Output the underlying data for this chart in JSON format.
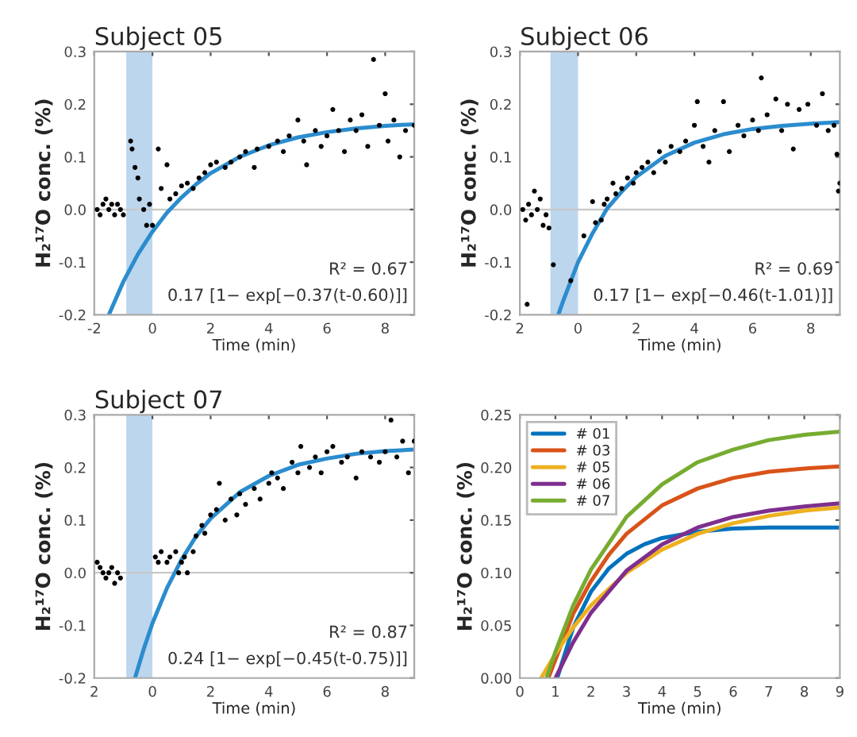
{
  "chart_data": [
    {
      "type": "scatter",
      "title": "Subject 05",
      "xlabel": "Time (min)",
      "ylabel": "H₂¹⁷O conc. (%)",
      "xlim": [
        -2,
        9
      ],
      "xticks": [
        -2,
        0,
        2,
        4,
        6,
        8
      ],
      "ylim": [
        -0.2,
        0.3
      ],
      "yticks": [
        {
          "value": -0.2,
          "label": "-0.2"
        },
        {
          "value": -0.1,
          "label": "-0.1"
        },
        {
          "value": 0,
          "label": "0.0"
        },
        {
          "value": 0.1,
          "label": "0.1"
        },
        {
          "value": 0.2,
          "label": "0.2"
        },
        {
          "value": 0.3,
          "label": "0.3"
        }
      ],
      "bands": [
        {
          "axis": "x",
          "from": -0.9,
          "to": 0,
          "color": "#bcd6ee"
        }
      ],
      "ref_lines": [
        {
          "axis": "y",
          "value": 0,
          "color": "#c8c8c8"
        }
      ],
      "annotations": [
        "R² = 0.67",
        "0.17 [1− exp[−0.37(t-0.60)]]"
      ],
      "series": [
        {
          "type": "scatter",
          "color": "#000000",
          "marker": "circle",
          "x": [
            -1.9,
            -1.8,
            -1.7,
            -1.6,
            -1.5,
            -1.4,
            -1.3,
            -1.2,
            -1.1,
            -1.0,
            -0.75,
            -0.7,
            -0.6,
            -0.5,
            -0.45,
            -0.3,
            -0.2,
            -0.1,
            0.0,
            0.2,
            0.3,
            0.5,
            0.6,
            0.8,
            1.0,
            1.2,
            1.4,
            1.6,
            1.8,
            2.0,
            2.2,
            2.5,
            2.7,
            3.0,
            3.2,
            3.5,
            3.6,
            4.0,
            4.3,
            4.5,
            4.7,
            5.0,
            5.2,
            5.3,
            5.6,
            5.8,
            6.0,
            6.2,
            6.4,
            6.6,
            6.8,
            7.0,
            7.2,
            7.4,
            7.6,
            7.8,
            8.0,
            8.1,
            8.3,
            8.5,
            8.7,
            9.0
          ],
          "values": [
            0.0,
            -0.01,
            0.01,
            0.02,
            0.0,
            0.01,
            -0.01,
            0.01,
            0.0,
            -0.01,
            0.13,
            0.115,
            0.08,
            0.06,
            0.02,
            0.0,
            -0.03,
            0.01,
            -0.03,
            0.115,
            0.04,
            0.085,
            0.02,
            0.03,
            0.045,
            0.05,
            0.04,
            0.06,
            0.07,
            0.085,
            0.09,
            0.08,
            0.09,
            0.1,
            0.11,
            0.08,
            0.115,
            0.12,
            0.13,
            0.11,
            0.14,
            0.17,
            0.13,
            0.085,
            0.15,
            0.12,
            0.14,
            0.19,
            0.15,
            0.11,
            0.17,
            0.15,
            0.18,
            0.12,
            0.285,
            0.16,
            0.22,
            0.13,
            0.17,
            0.1,
            0.15,
            0.16
          ]
        },
        {
          "type": "line",
          "color": "#2b8cce",
          "marker": "none",
          "x": [
            -1.5,
            -1,
            -0.5,
            0,
            0.5,
            1,
            1.5,
            2,
            3,
            4,
            5,
            6,
            7,
            8,
            9
          ],
          "values": [
            -0.2,
            -0.137,
            -0.085,
            -0.042,
            -0.006,
            0.023,
            0.048,
            0.069,
            0.1,
            0.122,
            0.137,
            0.147,
            0.154,
            0.159,
            0.162
          ]
        }
      ]
    },
    {
      "type": "scatter",
      "title": "Subject 06",
      "xlabel": "Time (min)",
      "ylabel": "H₂¹⁷O conc. (%)",
      "xlim": [
        -2,
        9
      ],
      "xticks": [
        {
          "value": -2,
          "label": "2"
        },
        0,
        2,
        4,
        6,
        8
      ],
      "ylim": [
        -0.2,
        0.3
      ],
      "yticks": [
        {
          "value": -0.2,
          "label": "-0.2"
        },
        {
          "value": -0.1,
          "label": "-0.1"
        },
        {
          "value": 0,
          "label": "0.0"
        },
        {
          "value": 0.1,
          "label": "0.1"
        },
        {
          "value": 0.2,
          "label": "0.2"
        },
        {
          "value": 0.3,
          "label": "0.3"
        }
      ],
      "bands": [
        {
          "axis": "x",
          "from": -0.95,
          "to": 0,
          "color": "#bcd6ee"
        }
      ],
      "ref_lines": [
        {
          "axis": "y",
          "value": 0,
          "color": "#c8c8c8"
        }
      ],
      "annotations": [
        "R² = 0.69",
        "0.17 [1− exp[−0.46(t-1.01)]]"
      ],
      "series": [
        {
          "type": "scatter",
          "color": "#000000",
          "marker": "circle",
          "x": [
            -1.9,
            -1.8,
            -1.75,
            -1.7,
            -1.6,
            -1.5,
            -1.4,
            -1.3,
            -1.2,
            -1.1,
            -1.0,
            -0.85,
            -0.25,
            0.2,
            0.5,
            0.6,
            0.8,
            0.9,
            1.0,
            1.2,
            1.3,
            1.5,
            1.7,
            1.9,
            2.0,
            2.2,
            2.4,
            2.6,
            2.8,
            3.0,
            3.2,
            3.5,
            3.7,
            4.0,
            4.1,
            4.3,
            4.5,
            4.7,
            5.0,
            5.2,
            5.5,
            5.7,
            6.0,
            6.2,
            6.3,
            6.5,
            6.8,
            7.0,
            7.2,
            7.4,
            7.6,
            7.9,
            8.2,
            8.4,
            8.6,
            8.8,
            8.9,
            9.0,
            8.95
          ],
          "values": [
            0.0,
            -0.02,
            -0.18,
            0.01,
            -0.01,
            0.035,
            0.0,
            0.02,
            -0.03,
            -0.01,
            -0.035,
            -0.105,
            -0.135,
            -0.05,
            0.015,
            -0.025,
            -0.02,
            0.01,
            0.02,
            0.05,
            0.03,
            0.04,
            0.06,
            0.05,
            0.07,
            0.08,
            0.09,
            0.07,
            0.11,
            0.09,
            0.12,
            0.11,
            0.13,
            0.16,
            0.205,
            0.12,
            0.09,
            0.15,
            0.205,
            0.11,
            0.16,
            0.14,
            0.17,
            0.15,
            0.25,
            0.18,
            0.21,
            0.15,
            0.2,
            0.115,
            0.19,
            0.2,
            0.16,
            0.22,
            0.15,
            0.16,
            0.105,
            0.05,
            0.035
          ]
        },
        {
          "type": "line",
          "color": "#2b8cce",
          "marker": "none",
          "x": [
            -0.68,
            -0.5,
            0,
            0.5,
            1,
            1.5,
            2,
            3,
            4,
            5,
            6,
            7,
            8,
            9
          ],
          "values": [
            -0.2,
            -0.172,
            -0.1,
            -0.045,
            0.002,
            0.034,
            0.062,
            0.102,
            0.127,
            0.143,
            0.153,
            0.159,
            0.163,
            0.166
          ]
        }
      ]
    },
    {
      "type": "scatter",
      "title": "Subject 07",
      "xlabel": "Time (min)",
      "ylabel": "H₂¹⁷O conc. (%)",
      "xlim": [
        -2,
        9
      ],
      "xticks": [
        {
          "value": -2,
          "label": "2"
        },
        0,
        2,
        4,
        6,
        8
      ],
      "ylim": [
        -0.2,
        0.3
      ],
      "yticks": [
        {
          "value": -0.2,
          "label": "-0.2"
        },
        {
          "value": -0.1,
          "label": "-0.1"
        },
        {
          "value": 0,
          "label": "0.0"
        },
        {
          "value": 0.1,
          "label": "0.1"
        },
        {
          "value": 0.2,
          "label": "0.2"
        },
        {
          "value": 0.3,
          "label": "0.3"
        }
      ],
      "bands": [
        {
          "axis": "x",
          "from": -0.9,
          "to": 0,
          "color": "#bcd6ee"
        }
      ],
      "ref_lines": [
        {
          "axis": "y",
          "value": 0,
          "color": "#c8c8c8"
        }
      ],
      "annotations": [
        "R² = 0.87",
        "0.24 [1− exp[−0.45(t-0.75)]]"
      ],
      "series": [
        {
          "type": "scatter",
          "color": "#000000",
          "marker": "circle",
          "x": [
            -1.9,
            -1.8,
            -1.7,
            -1.6,
            -1.5,
            -1.4,
            -1.3,
            -1.2,
            -1.1,
            0.1,
            0.2,
            0.3,
            0.5,
            0.6,
            0.8,
            0.9,
            1.0,
            1.1,
            1.2,
            1.4,
            1.5,
            1.7,
            1.8,
            2.0,
            2.2,
            2.3,
            2.5,
            2.7,
            2.9,
            3.0,
            3.2,
            3.5,
            3.7,
            4.0,
            4.1,
            4.3,
            4.5,
            4.8,
            5.0,
            5.1,
            5.4,
            5.6,
            5.8,
            6.0,
            6.2,
            6.5,
            6.7,
            7.0,
            7.2,
            7.5,
            7.8,
            8.0,
            8.2,
            8.4,
            8.6,
            8.8,
            9.0
          ],
          "values": [
            0.02,
            0.01,
            0.0,
            -0.01,
            0.0,
            0.01,
            -0.02,
            0.0,
            -0.01,
            0.03,
            0.02,
            0.04,
            0.02,
            0.03,
            0.04,
            0.0,
            0.02,
            0.03,
            0.0,
            0.04,
            0.07,
            0.09,
            0.075,
            0.11,
            0.12,
            0.17,
            0.1,
            0.14,
            0.11,
            0.15,
            0.13,
            0.16,
            0.14,
            0.17,
            0.19,
            0.18,
            0.16,
            0.21,
            0.19,
            0.24,
            0.2,
            0.22,
            0.19,
            0.23,
            0.24,
            0.21,
            0.22,
            0.18,
            0.23,
            0.22,
            0.21,
            0.23,
            0.29,
            0.22,
            0.25,
            0.19,
            0.25
          ]
        },
        {
          "type": "line",
          "color": "#2b8cce",
          "marker": "none",
          "x": [
            -0.6,
            -0.3,
            0,
            0.5,
            1,
            1.5,
            2,
            3,
            4,
            5,
            6,
            7,
            8,
            9
          ],
          "values": [
            -0.2,
            -0.145,
            -0.096,
            -0.029,
            0.025,
            0.069,
            0.103,
            0.153,
            0.184,
            0.205,
            0.217,
            0.226,
            0.231,
            0.234
          ]
        }
      ]
    },
    {
      "type": "line",
      "xlabel": "Time (min)",
      "ylabel": "H₂¹⁷O conc. (%)",
      "xlim": [
        0,
        9
      ],
      "xticks": [
        0,
        1,
        2,
        3,
        4,
        5,
        6,
        7,
        8,
        9
      ],
      "ylim": [
        0,
        0.25
      ],
      "yticks": [
        {
          "value": 0,
          "label": "0.00"
        },
        {
          "value": 0.05,
          "label": "0.05"
        },
        {
          "value": 0.1,
          "label": "0.10"
        },
        {
          "value": 0.15,
          "label": "0.15"
        },
        {
          "value": 0.2,
          "label": "0.20"
        },
        {
          "value": 0.25,
          "label": "0.25"
        }
      ],
      "legend": "top left",
      "series": [
        {
          "name": "# 01",
          "color": "#0072bd",
          "x": [
            1.05,
            1.5,
            2,
            2.5,
            3,
            3.5,
            4,
            5,
            6,
            7,
            8,
            9
          ],
          "values": [
            0,
            0.048,
            0.082,
            0.104,
            0.118,
            0.127,
            0.133,
            0.139,
            0.142,
            0.143,
            0.143,
            0.143
          ]
        },
        {
          "name": "# 03",
          "color": "#d95319",
          "x": [
            0.8,
            1.5,
            2,
            2.5,
            3,
            4,
            5,
            6,
            7,
            8,
            9
          ],
          "values": [
            0,
            0.061,
            0.092,
            0.117,
            0.137,
            0.164,
            0.18,
            0.19,
            0.196,
            0.199,
            0.201
          ]
        },
        {
          "name": "# 05",
          "color": "#edb120",
          "x": [
            0.6,
            1,
            1.5,
            2,
            3,
            4,
            5,
            6,
            7,
            8,
            9
          ],
          "values": [
            0,
            0.023,
            0.048,
            0.069,
            0.1,
            0.122,
            0.137,
            0.147,
            0.154,
            0.159,
            0.162
          ]
        },
        {
          "name": "# 06",
          "color": "#7e2f8e",
          "x": [
            1.0,
            1.5,
            2,
            3,
            4,
            5,
            6,
            7,
            8,
            9
          ],
          "values": [
            0,
            0.034,
            0.062,
            0.102,
            0.127,
            0.143,
            0.153,
            0.159,
            0.163,
            0.166
          ]
        },
        {
          "name": "# 07",
          "color": "#77ac30",
          "x": [
            0.75,
            1,
            1.5,
            2,
            3,
            4,
            5,
            6,
            7,
            8,
            9
          ],
          "values": [
            0,
            0.025,
            0.069,
            0.103,
            0.153,
            0.184,
            0.205,
            0.217,
            0.226,
            0.231,
            0.234
          ]
        }
      ]
    }
  ]
}
